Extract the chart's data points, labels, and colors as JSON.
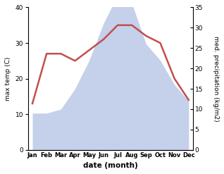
{
  "months": [
    "Jan",
    "Feb",
    "Mar",
    "Apr",
    "May",
    "Jun",
    "Jul",
    "Aug",
    "Sep",
    "Oct",
    "Nov",
    "Dec"
  ],
  "month_positions": [
    0,
    1,
    2,
    3,
    4,
    5,
    6,
    7,
    8,
    9,
    10,
    11
  ],
  "precipitation": [
    9,
    9,
    10,
    15,
    22,
    31,
    38,
    36,
    26,
    22,
    16,
    12
  ],
  "max_temp": [
    13,
    27,
    27,
    25,
    28,
    31,
    35,
    35,
    32,
    30,
    20,
    14
  ],
  "temp_ylim": [
    0,
    40
  ],
  "precip_ylim": [
    0,
    35
  ],
  "temp_color": "#c0504d",
  "precip_color_fill": "#c5d0eb",
  "ylabel_left": "max temp (C)",
  "ylabel_right": "med. precipitation (kg/m2)",
  "xlabel": "date (month)",
  "temp_yticks": [
    0,
    10,
    20,
    30,
    40
  ],
  "precip_yticks": [
    0,
    5,
    10,
    15,
    20,
    25,
    30,
    35
  ],
  "background_color": "#ffffff",
  "line_width": 1.8
}
